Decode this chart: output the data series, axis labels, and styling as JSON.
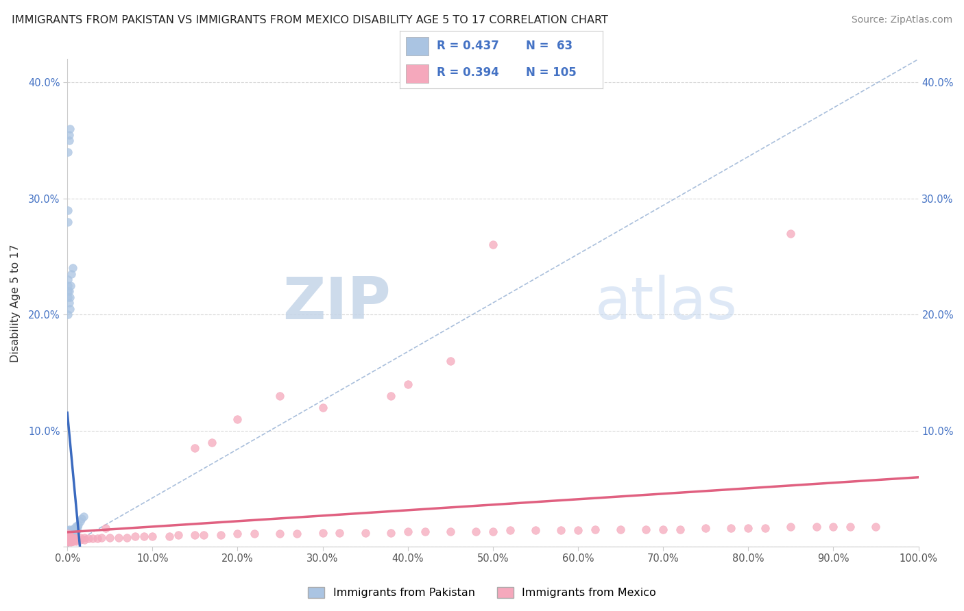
{
  "title": "IMMIGRANTS FROM PAKISTAN VS IMMIGRANTS FROM MEXICO DISABILITY AGE 5 TO 17 CORRELATION CHART",
  "source": "Source: ZipAtlas.com",
  "ylabel": "Disability Age 5 to 17",
  "xlim": [
    0,
    1.0
  ],
  "ylim": [
    0,
    0.42
  ],
  "x_ticks": [
    0.0,
    0.1,
    0.2,
    0.3,
    0.4,
    0.5,
    0.6,
    0.7,
    0.8,
    0.9,
    1.0
  ],
  "x_tick_labels": [
    "0.0%",
    "10.0%",
    "20.0%",
    "30.0%",
    "40.0%",
    "50.0%",
    "60.0%",
    "70.0%",
    "80.0%",
    "90.0%",
    "100.0%"
  ],
  "y_ticks": [
    0.0,
    0.1,
    0.2,
    0.3,
    0.4
  ],
  "y_tick_labels": [
    "",
    "10.0%",
    "20.0%",
    "30.0%",
    "40.0%"
  ],
  "pakistan_R": 0.437,
  "pakistan_N": 63,
  "mexico_R": 0.394,
  "mexico_N": 105,
  "pakistan_color": "#aac4e2",
  "mexico_color": "#f5a8bc",
  "pakistan_line_color": "#3a6abf",
  "mexico_line_color": "#e06080",
  "diagonal_color": "#a0b8d8",
  "watermark_zip": "ZIP",
  "watermark_atlas": "atlas",
  "background_color": "#ffffff",
  "grid_color": "#d8d8d8",
  "legend_label_pakistan": "Immigrants from Pakistan",
  "legend_label_mexico": "Immigrants from Mexico",
  "pakistan_scatter_x": [
    0.001,
    0.001,
    0.001,
    0.001,
    0.001,
    0.001,
    0.001,
    0.001,
    0.001,
    0.001,
    0.002,
    0.002,
    0.002,
    0.002,
    0.002,
    0.002,
    0.002,
    0.002,
    0.003,
    0.003,
    0.003,
    0.003,
    0.003,
    0.004,
    0.004,
    0.004,
    0.004,
    0.005,
    0.005,
    0.005,
    0.006,
    0.006,
    0.007,
    0.007,
    0.008,
    0.008,
    0.009,
    0.01,
    0.01,
    0.011,
    0.012,
    0.013,
    0.015,
    0.017,
    0.019,
    0.001,
    0.002,
    0.002,
    0.001,
    0.001,
    0.001,
    0.001,
    0.003,
    0.003,
    0.004,
    0.005,
    0.006,
    0.001,
    0.001,
    0.001,
    0.002,
    0.002,
    0.003
  ],
  "pakistan_scatter_y": [
    0.005,
    0.007,
    0.008,
    0.009,
    0.01,
    0.01,
    0.011,
    0.012,
    0.013,
    0.014,
    0.007,
    0.008,
    0.009,
    0.01,
    0.011,
    0.012,
    0.013,
    0.015,
    0.008,
    0.009,
    0.01,
    0.011,
    0.013,
    0.008,
    0.01,
    0.012,
    0.014,
    0.009,
    0.011,
    0.013,
    0.01,
    0.012,
    0.011,
    0.014,
    0.012,
    0.016,
    0.014,
    0.013,
    0.018,
    0.015,
    0.017,
    0.019,
    0.022,
    0.024,
    0.026,
    0.2,
    0.21,
    0.22,
    0.23,
    0.22,
    0.215,
    0.225,
    0.205,
    0.215,
    0.225,
    0.235,
    0.24,
    0.28,
    0.29,
    0.34,
    0.35,
    0.355,
    0.36
  ],
  "mexico_scatter_x": [
    0.001,
    0.001,
    0.001,
    0.001,
    0.001,
    0.001,
    0.001,
    0.001,
    0.001,
    0.001,
    0.002,
    0.002,
    0.002,
    0.002,
    0.002,
    0.002,
    0.002,
    0.003,
    0.003,
    0.003,
    0.003,
    0.003,
    0.004,
    0.004,
    0.004,
    0.004,
    0.004,
    0.005,
    0.005,
    0.005,
    0.005,
    0.006,
    0.006,
    0.006,
    0.007,
    0.007,
    0.007,
    0.008,
    0.008,
    0.009,
    0.009,
    0.01,
    0.01,
    0.01,
    0.015,
    0.015,
    0.02,
    0.02,
    0.025,
    0.03,
    0.035,
    0.04,
    0.05,
    0.06,
    0.07,
    0.08,
    0.09,
    0.1,
    0.12,
    0.13,
    0.15,
    0.16,
    0.18,
    0.2,
    0.22,
    0.25,
    0.27,
    0.3,
    0.32,
    0.35,
    0.38,
    0.4,
    0.42,
    0.45,
    0.48,
    0.5,
    0.52,
    0.55,
    0.58,
    0.6,
    0.62,
    0.65,
    0.68,
    0.7,
    0.72,
    0.75,
    0.78,
    0.8,
    0.82,
    0.85,
    0.88,
    0.9,
    0.92,
    0.95,
    0.045,
    0.5,
    0.85,
    0.4,
    0.45,
    0.38,
    0.3,
    0.25,
    0.2,
    0.17,
    0.15
  ],
  "mexico_scatter_y": [
    0.004,
    0.005,
    0.006,
    0.007,
    0.007,
    0.008,
    0.008,
    0.009,
    0.01,
    0.011,
    0.005,
    0.006,
    0.007,
    0.008,
    0.008,
    0.009,
    0.01,
    0.005,
    0.006,
    0.007,
    0.008,
    0.009,
    0.004,
    0.005,
    0.006,
    0.007,
    0.008,
    0.005,
    0.006,
    0.007,
    0.008,
    0.005,
    0.006,
    0.007,
    0.005,
    0.006,
    0.007,
    0.006,
    0.007,
    0.006,
    0.007,
    0.005,
    0.006,
    0.007,
    0.006,
    0.008,
    0.006,
    0.008,
    0.007,
    0.007,
    0.007,
    0.008,
    0.008,
    0.008,
    0.008,
    0.009,
    0.009,
    0.009,
    0.009,
    0.01,
    0.01,
    0.01,
    0.01,
    0.011,
    0.011,
    0.011,
    0.011,
    0.012,
    0.012,
    0.012,
    0.012,
    0.013,
    0.013,
    0.013,
    0.013,
    0.013,
    0.014,
    0.014,
    0.014,
    0.014,
    0.015,
    0.015,
    0.015,
    0.015,
    0.015,
    0.016,
    0.016,
    0.016,
    0.016,
    0.017,
    0.017,
    0.017,
    0.017,
    0.017,
    0.016,
    0.26,
    0.27,
    0.14,
    0.16,
    0.13,
    0.12,
    0.13,
    0.11,
    0.09,
    0.085
  ]
}
